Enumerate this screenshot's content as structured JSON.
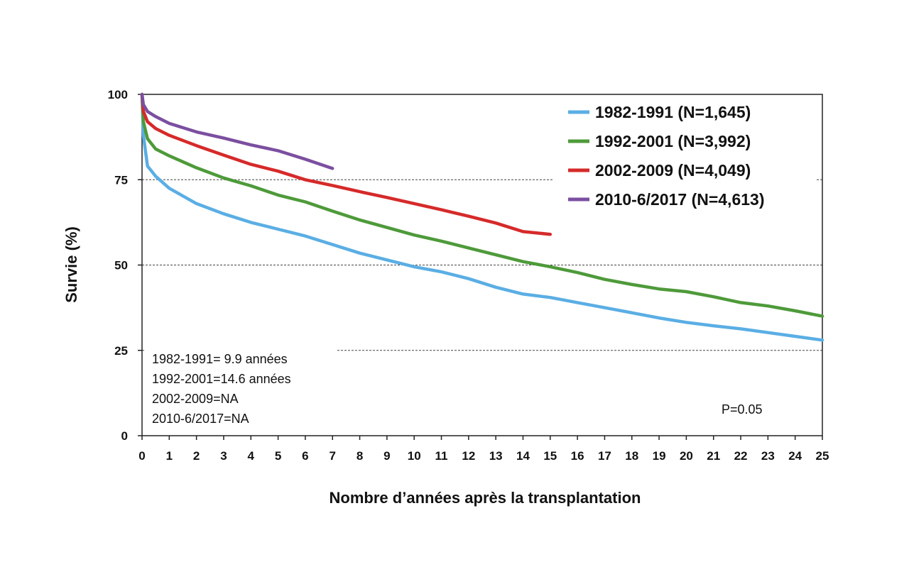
{
  "chart_data": {
    "type": "line",
    "title": "",
    "xlabel": "Nombre d’années après la transplantation",
    "ylabel": "Survie (%)",
    "xlim": [
      0,
      25
    ],
    "ylim": [
      0,
      100
    ],
    "x_ticks": [
      "0",
      "1",
      "2",
      "3",
      "4",
      "5",
      "6",
      "7",
      "8",
      "9",
      "10",
      "11",
      "12",
      "13",
      "14",
      "15",
      "16",
      "17",
      "18",
      "19",
      "20",
      "21",
      "22",
      "23",
      "24",
      "25"
    ],
    "y_ticks": [
      "0",
      "25",
      "50",
      "75",
      "100"
    ],
    "grid": "horizontal dashed at 25, 50, 75",
    "legend_position": "top-right",
    "series": [
      {
        "name": "1982-1991 (N=1,645)",
        "color": "#5aaee4",
        "points": [
          [
            0,
            100
          ],
          [
            0.05,
            88
          ],
          [
            0.2,
            79
          ],
          [
            0.5,
            76
          ],
          [
            1,
            72.5
          ],
          [
            2,
            68
          ],
          [
            3,
            65
          ],
          [
            4,
            62.5
          ],
          [
            5,
            60.5
          ],
          [
            6,
            58.5
          ],
          [
            7,
            56
          ],
          [
            8,
            53.5
          ],
          [
            9,
            51.5
          ],
          [
            10,
            49.5
          ],
          [
            11,
            48
          ],
          [
            12,
            46
          ],
          [
            13,
            43.5
          ],
          [
            14,
            41.5
          ],
          [
            15,
            40.5
          ],
          [
            16,
            39
          ],
          [
            17,
            37.5
          ],
          [
            18,
            36
          ],
          [
            19,
            34.5
          ],
          [
            20,
            33.2
          ],
          [
            21,
            32.2
          ],
          [
            22,
            31.3
          ],
          [
            23,
            30.2
          ],
          [
            24,
            29.1
          ],
          [
            25,
            28
          ]
        ]
      },
      {
        "name": "1992-2001 (N=3,992)",
        "color": "#4e9a3a",
        "points": [
          [
            0,
            100
          ],
          [
            0.05,
            92
          ],
          [
            0.2,
            87
          ],
          [
            0.5,
            84
          ],
          [
            1,
            82
          ],
          [
            2,
            78.5
          ],
          [
            3,
            75.5
          ],
          [
            4,
            73.2
          ],
          [
            5,
            70.5
          ],
          [
            6,
            68.5
          ],
          [
            7,
            65.8
          ],
          [
            8,
            63.2
          ],
          [
            9,
            61
          ],
          [
            10,
            58.8
          ],
          [
            11,
            57
          ],
          [
            12,
            55
          ],
          [
            13,
            53
          ],
          [
            14,
            51
          ],
          [
            15,
            49.5
          ],
          [
            16,
            47.8
          ],
          [
            17,
            45.8
          ],
          [
            18,
            44.3
          ],
          [
            19,
            43
          ],
          [
            20,
            42.2
          ],
          [
            21,
            40.7
          ],
          [
            22,
            39
          ],
          [
            23,
            38
          ],
          [
            24,
            36.6
          ],
          [
            25,
            35
          ]
        ]
      },
      {
        "name": "2002-2009 (N=4,049)",
        "color": "#d62a2a",
        "points": [
          [
            0,
            100
          ],
          [
            0.05,
            95
          ],
          [
            0.2,
            92
          ],
          [
            0.5,
            90
          ],
          [
            1,
            88
          ],
          [
            2,
            85
          ],
          [
            3,
            82.2
          ],
          [
            4,
            79.5
          ],
          [
            5,
            77.5
          ],
          [
            6,
            75
          ],
          [
            7,
            73.3
          ],
          [
            8,
            71.5
          ],
          [
            9,
            69.8
          ],
          [
            10,
            68
          ],
          [
            11,
            66.2
          ],
          [
            12,
            64.3
          ],
          [
            13,
            62.3
          ],
          [
            14,
            59.8
          ],
          [
            15,
            59
          ]
        ]
      },
      {
        "name": "2010-6/2017 (N=4,613)",
        "color": "#7b4fa0",
        "points": [
          [
            0,
            100
          ],
          [
            0.05,
            97
          ],
          [
            0.2,
            95
          ],
          [
            0.5,
            93.5
          ],
          [
            1,
            91.5
          ],
          [
            2,
            89
          ],
          [
            3,
            87.2
          ],
          [
            4,
            85.2
          ],
          [
            5,
            83.5
          ],
          [
            6,
            81
          ],
          [
            7,
            78.3
          ]
        ]
      }
    ],
    "annotations": {
      "median_lines": [
        "1982-1991= 9.9 années",
        "1992-2001=14.6 années",
        "2002-2009=NA",
        "2010-6/2017=NA"
      ],
      "p_value": "P=0.05"
    }
  }
}
